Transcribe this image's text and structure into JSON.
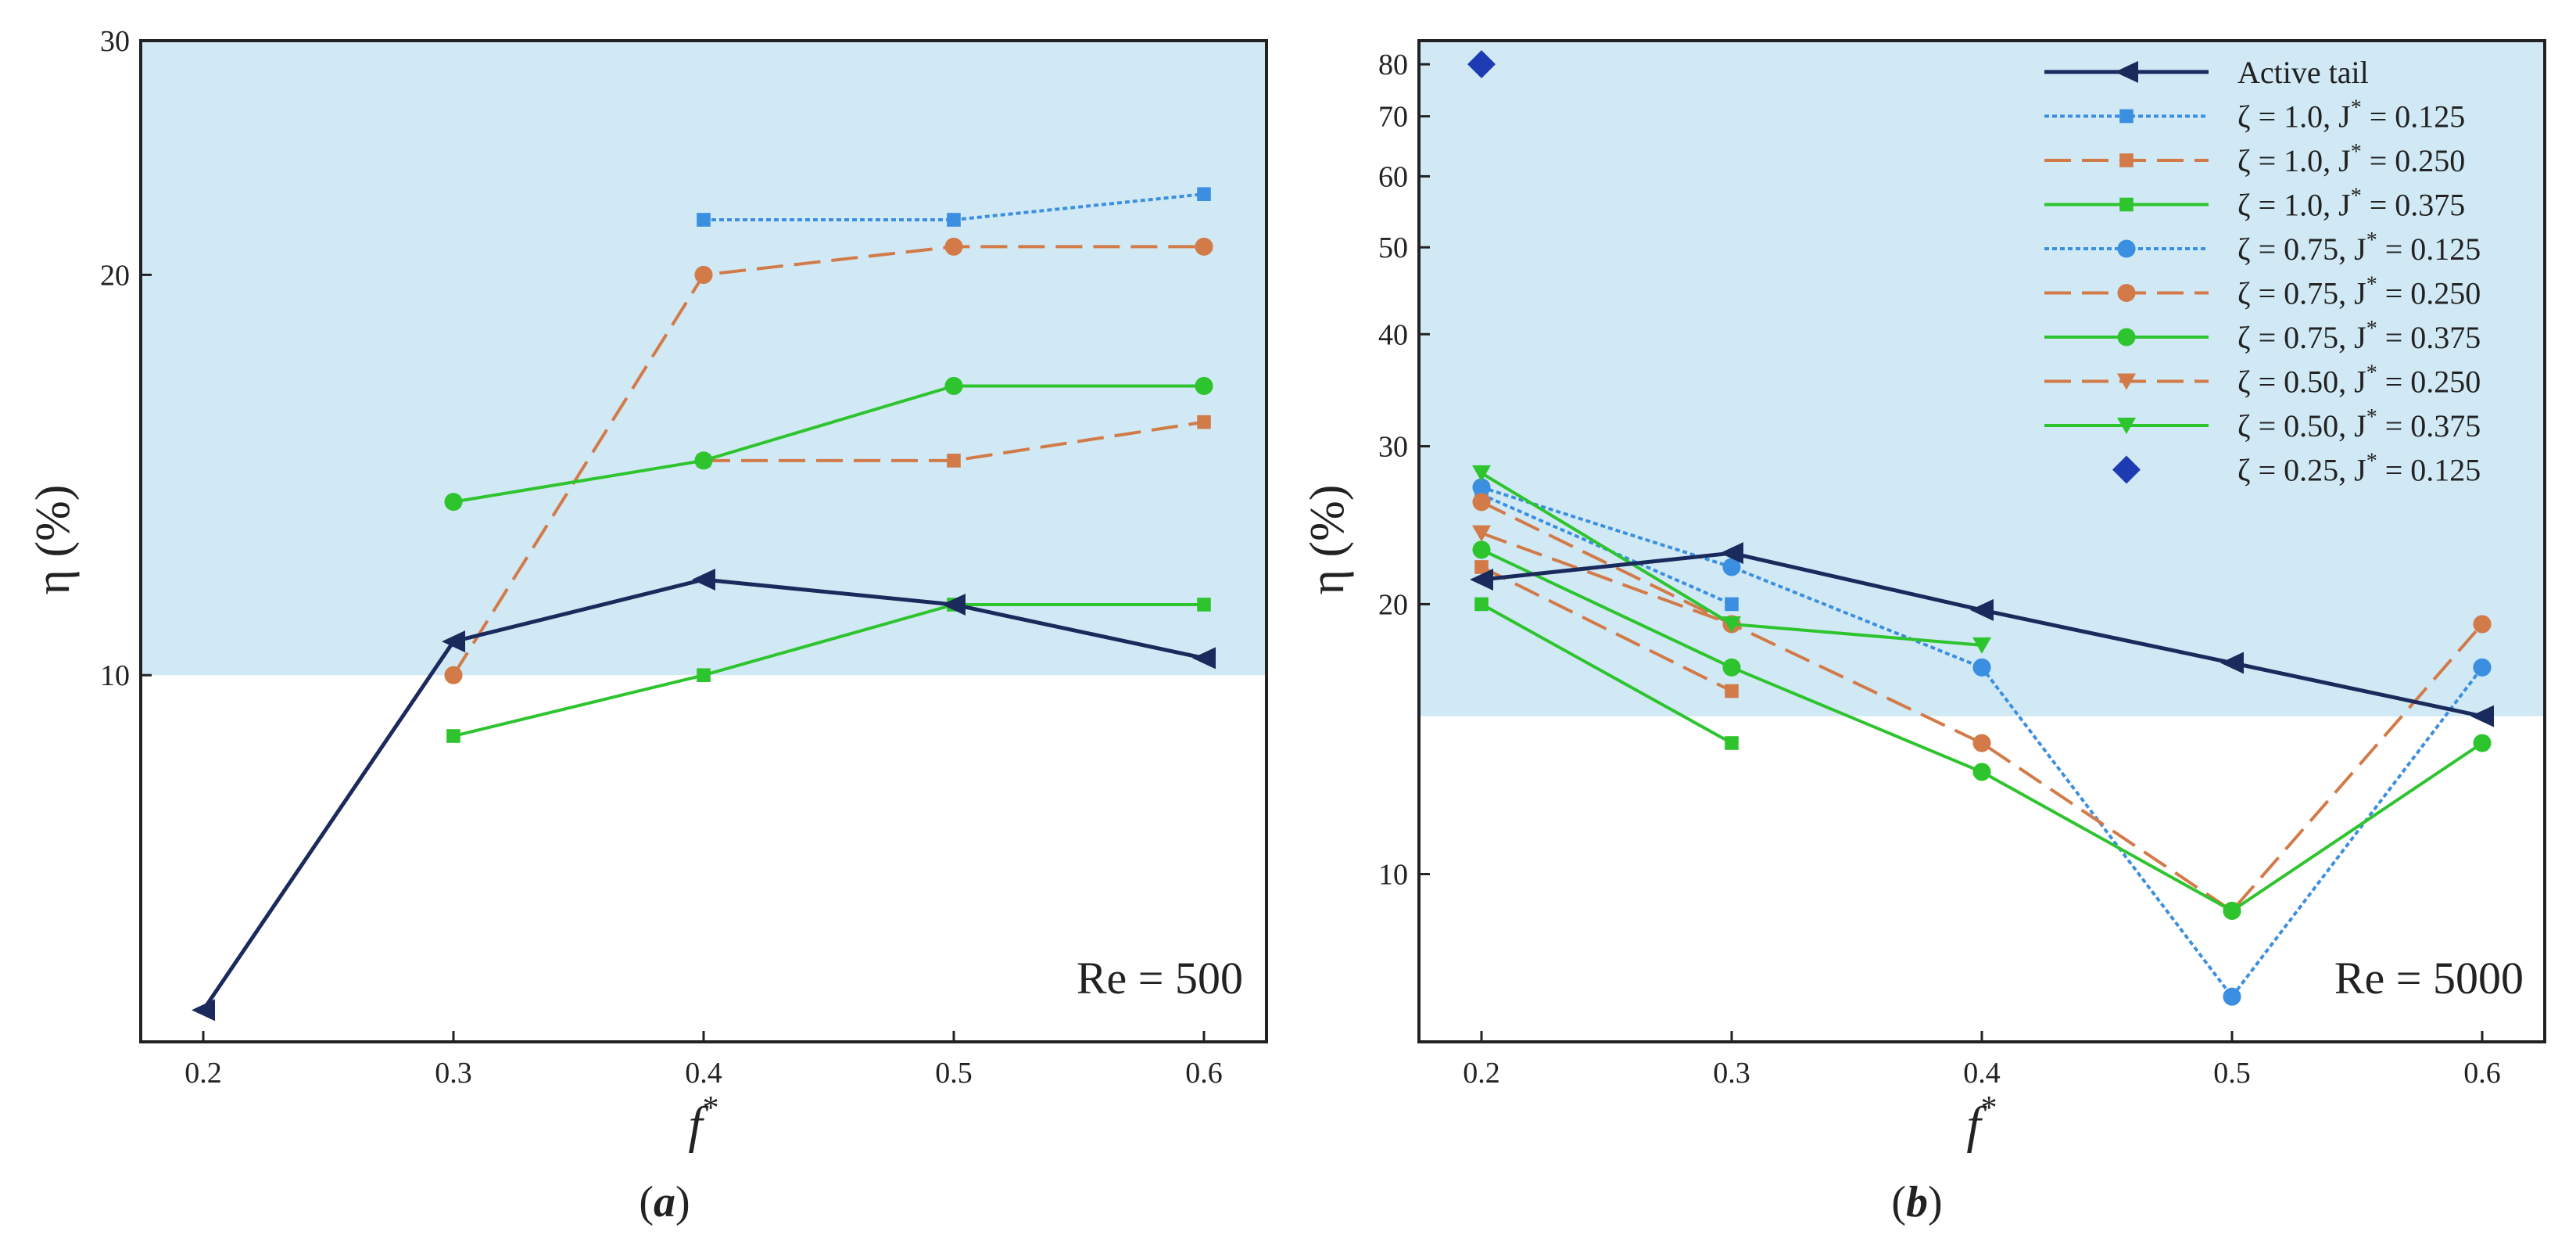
{
  "chart_data": [
    {
      "type": "line",
      "panel_label": "a",
      "annotation": "Re = 500",
      "xlabel": "f",
      "xlabel_sup": "*",
      "ylabel": "η (%)",
      "yscale": "log",
      "xlim": [
        0.175,
        0.625
      ],
      "ylim": [
        5.3,
        30
      ],
      "shaded_above": 10,
      "x_ticks": [
        0.2,
        0.3,
        0.4,
        0.5,
        0.6
      ],
      "x_tick_labels": [
        "0.2",
        "0.3",
        "0.4",
        "0.5",
        "0.6"
      ],
      "y_ticks": [
        10,
        20,
        30
      ],
      "y_tick_labels": [
        "10",
        "20",
        "30"
      ],
      "series": [
        {
          "key": "active",
          "x": [
            0.2,
            0.3,
            0.4,
            0.5,
            0.6
          ],
          "values": [
            5.6,
            10.6,
            11.8,
            11.3,
            10.3
          ]
        },
        {
          "key": "z100_j0125",
          "x": [
            0.4,
            0.5,
            0.6
          ],
          "values": [
            22.0,
            22.0,
            23.0
          ]
        },
        {
          "key": "z100_j0250",
          "x": [
            0.4,
            0.5,
            0.6
          ],
          "values": [
            14.5,
            14.5,
            15.5
          ]
        },
        {
          "key": "z100_j0375",
          "x": [
            0.3,
            0.4,
            0.5,
            0.6
          ],
          "values": [
            9.0,
            10.0,
            11.3,
            11.3
          ]
        },
        {
          "key": "z075_j0250",
          "x": [
            0.3,
            0.4,
            0.5,
            0.6
          ],
          "values": [
            10.0,
            20.0,
            21.0,
            21.0
          ]
        },
        {
          "key": "z075_j0375",
          "x": [
            0.3,
            0.4,
            0.5,
            0.6
          ],
          "values": [
            13.5,
            14.5,
            16.5,
            16.5
          ]
        }
      ]
    },
    {
      "type": "line",
      "panel_label": "b",
      "annotation": "Re = 5000",
      "xlabel": "f",
      "xlabel_sup": "*",
      "ylabel": "η (%)",
      "yscale": "log",
      "xlim": [
        0.175,
        0.625
      ],
      "ylim": [
        6.5,
        85
      ],
      "shaded_above": 15,
      "x_ticks": [
        0.2,
        0.3,
        0.4,
        0.5,
        0.6
      ],
      "x_tick_labels": [
        "0.2",
        "0.3",
        "0.4",
        "0.5",
        "0.6"
      ],
      "y_ticks": [
        10,
        20,
        30,
        40,
        50,
        60,
        70,
        80
      ],
      "y_tick_labels": [
        "10",
        "20",
        "30",
        "40",
        "50",
        "60",
        "70",
        "80"
      ],
      "series": [
        {
          "key": "active",
          "x": [
            0.2,
            0.3,
            0.4,
            0.5,
            0.6
          ],
          "values": [
            21.3,
            22.8,
            19.7,
            17.2,
            15.0
          ]
        },
        {
          "key": "z100_j0125",
          "x": [
            0.2,
            0.3
          ],
          "values": [
            26.5,
            20.0
          ]
        },
        {
          "key": "z100_j0250",
          "x": [
            0.2,
            0.3
          ],
          "values": [
            22.0,
            16.0
          ]
        },
        {
          "key": "z100_j0375",
          "x": [
            0.2,
            0.3
          ],
          "values": [
            20.0,
            14.0
          ]
        },
        {
          "key": "z075_j0125",
          "x": [
            0.2,
            0.3,
            0.4,
            0.5,
            0.6
          ],
          "values": [
            27.0,
            22.0,
            17.0,
            7.3,
            17.0
          ]
        },
        {
          "key": "z075_j0250",
          "x": [
            0.2,
            0.3,
            0.4,
            0.5,
            0.6
          ],
          "values": [
            26.0,
            19.0,
            14.0,
            9.1,
            19.0
          ]
        },
        {
          "key": "z075_j0375",
          "x": [
            0.2,
            0.3,
            0.4,
            0.5,
            0.6
          ],
          "values": [
            23.0,
            17.0,
            13.0,
            9.1,
            14.0
          ]
        },
        {
          "key": "z050_j0250",
          "x": [
            0.2,
            0.3
          ],
          "values": [
            24.0,
            19.0
          ]
        },
        {
          "key": "z050_j0375",
          "x": [
            0.2,
            0.3,
            0.4
          ],
          "values": [
            28.0,
            19.0,
            18.0
          ]
        },
        {
          "key": "z025_j0125",
          "x": [
            0.2
          ],
          "values": [
            80.0
          ]
        }
      ]
    }
  ],
  "legend": {
    "location": "top-right of panel b",
    "entries": [
      {
        "key": "active",
        "label": "Active tail",
        "zeta": "",
        "jval": "",
        "color": "#1b2a5c",
        "marker": "triangle-left",
        "dash": "solid"
      },
      {
        "key": "z100_j0125",
        "label": "",
        "zeta": "1.0,",
        "jval": "0.125",
        "color": "#3b8fe0",
        "marker": "square",
        "dash": "dotted"
      },
      {
        "key": "z100_j0250",
        "label": "",
        "zeta": "1.0,",
        "jval": "0.250",
        "color": "#d27a48",
        "marker": "square",
        "dash": "dashed"
      },
      {
        "key": "z100_j0375",
        "label": "",
        "zeta": "1.0,",
        "jval": "0.375",
        "color": "#2ec42e",
        "marker": "square",
        "dash": "solid"
      },
      {
        "key": "z075_j0125",
        "label": "",
        "zeta": "0.75,",
        "jval": "0.125",
        "color": "#3b8fe0",
        "marker": "circle",
        "dash": "dotted"
      },
      {
        "key": "z075_j0250",
        "label": "",
        "zeta": "0.75,",
        "jval": "0.250",
        "color": "#d27a48",
        "marker": "circle",
        "dash": "dashed"
      },
      {
        "key": "z075_j0375",
        "label": "",
        "zeta": "0.75,",
        "jval": "0.375",
        "color": "#2ec42e",
        "marker": "circle",
        "dash": "solid"
      },
      {
        "key": "z050_j0250",
        "label": "",
        "zeta": "0.50,",
        "jval": "0.250",
        "color": "#d27a48",
        "marker": "triangle-down",
        "dash": "dashed"
      },
      {
        "key": "z050_j0375",
        "label": "",
        "zeta": "0.50,",
        "jval": "0.375",
        "color": "#2ec42e",
        "marker": "triangle-down",
        "dash": "solid"
      },
      {
        "key": "z025_j0125",
        "label": "",
        "zeta": "0.25,",
        "jval": "0.125",
        "color": "#1f3bb3",
        "marker": "diamond",
        "dash": "none"
      }
    ]
  },
  "symbols": {
    "zeta": "ζ",
    "equals": "=",
    "j": "J",
    "star": "*"
  },
  "colors": {
    "shade": "#d0e9f5",
    "axis": "#222222"
  }
}
